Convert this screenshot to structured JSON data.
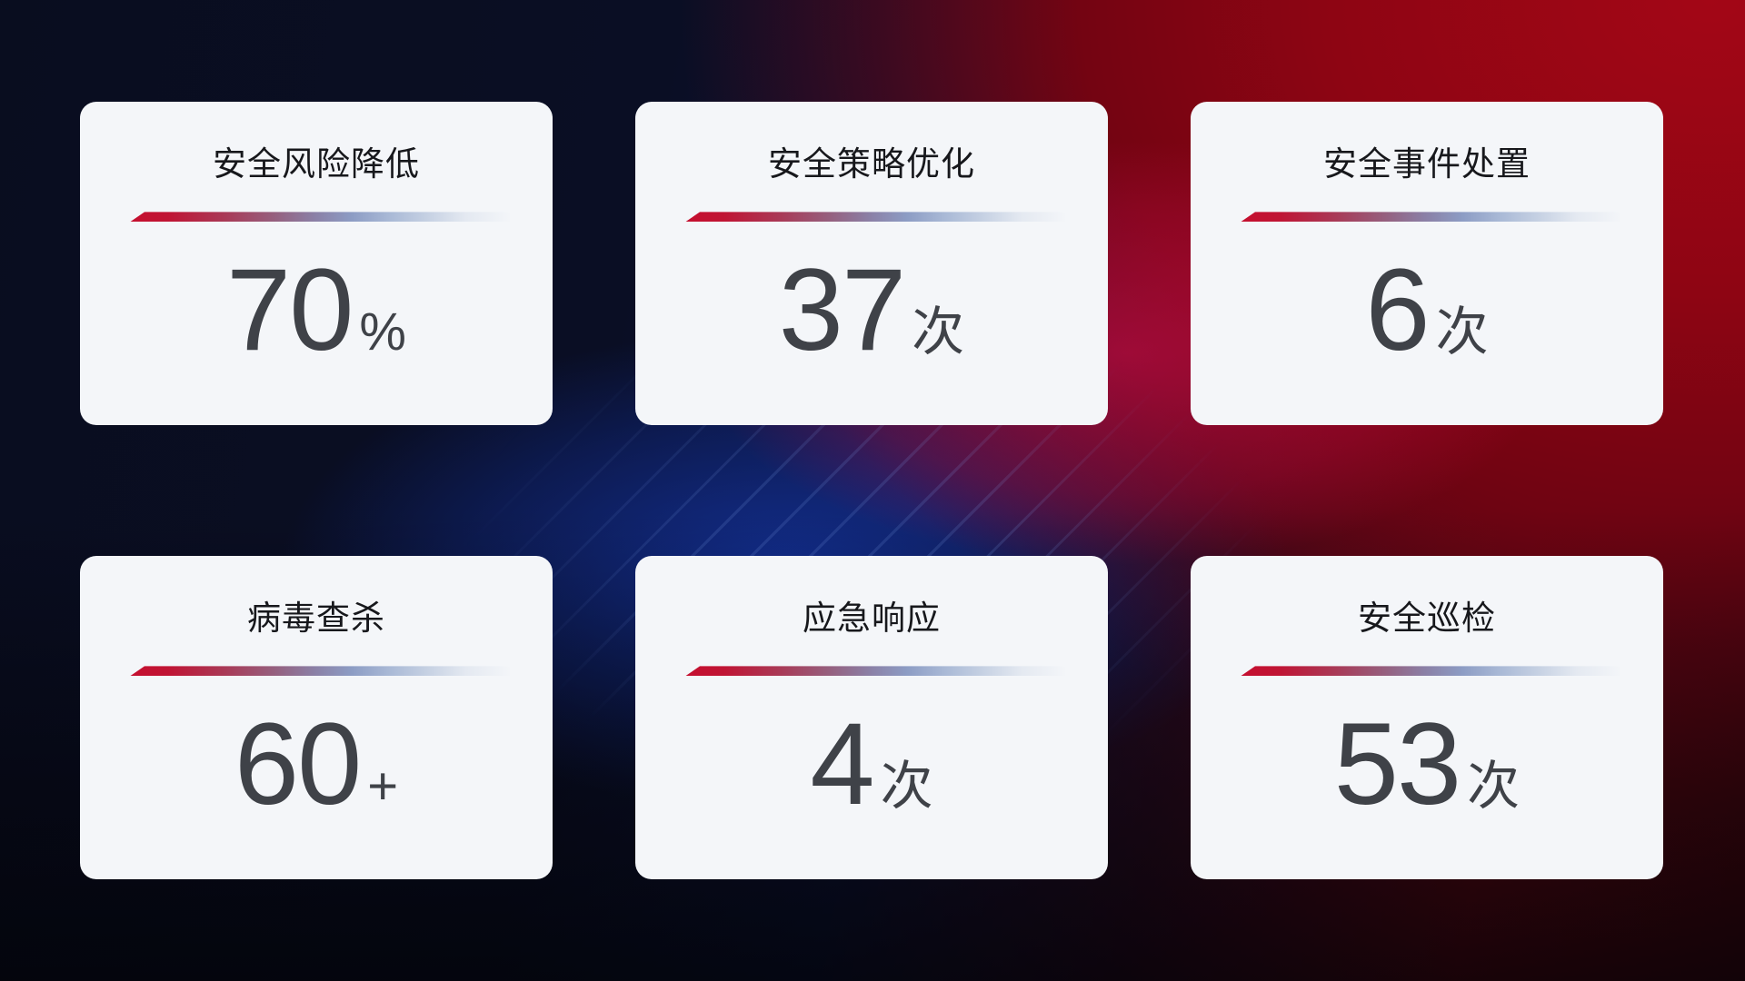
{
  "cards": [
    {
      "title": "安全风险降低",
      "value": "70",
      "unit": "%"
    },
    {
      "title": "安全策略优化",
      "value": "37",
      "unit": "次"
    },
    {
      "title": "安全事件处置",
      "value": "6",
      "unit": "次"
    },
    {
      "title": "病毒查杀",
      "value": "60",
      "unit": "+"
    },
    {
      "title": "应急响应",
      "value": "4",
      "unit": "次"
    },
    {
      "title": "安全巡检",
      "value": "53",
      "unit": "次"
    }
  ],
  "colors": {
    "card_background": "#f4f6f9",
    "title_text": "#17181c",
    "value_text": "#3f4248",
    "divider_start_red": "#c50f2f",
    "divider_mid_blue": "#8c9cc4",
    "divider_end_fade": "#e4e9f1",
    "bg_navy": "#0a0e24",
    "bg_blue_glow": "#13308f",
    "bg_red": "#a30616",
    "bg_crimson_band": "#c80e4b"
  }
}
